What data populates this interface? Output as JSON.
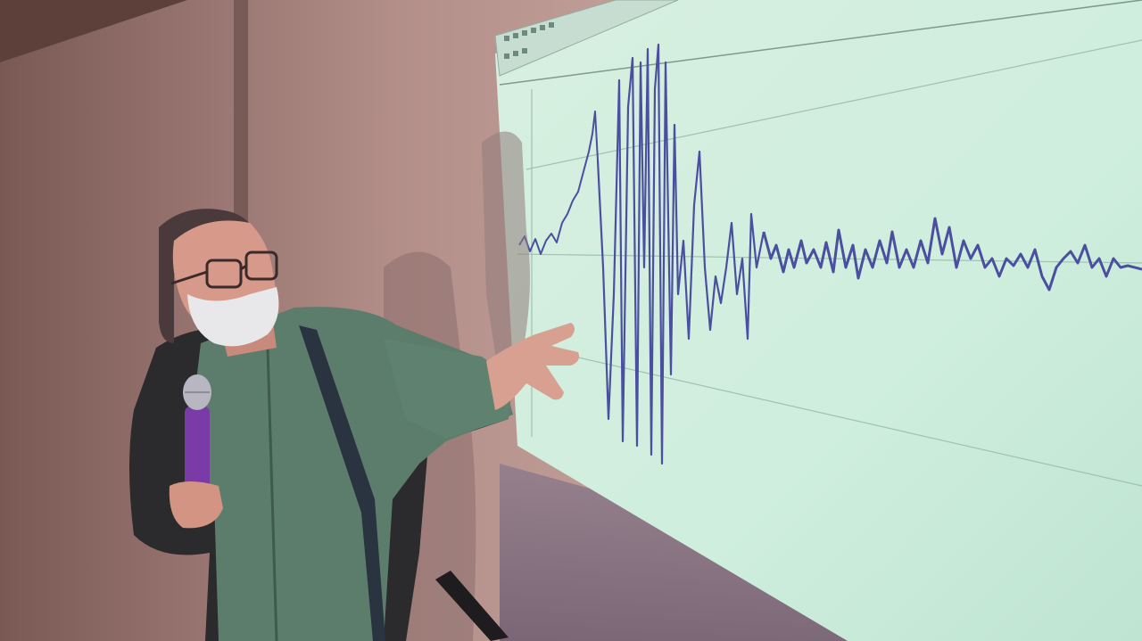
{
  "photo": {
    "subject": "presenter-with-microphone",
    "colors": {
      "wall_light": "#c9a6a1",
      "wall_dark": "#7d5c58",
      "screen": "#d9f2e2",
      "screen_edge": "#a9c9b8",
      "waveform": "#4a4fa0",
      "shirt": "#5c7d6c",
      "jacket": "#2b2a2c",
      "mic": "#7a3aa8",
      "skin": "#d79a8a",
      "beard": "#e8e8ea"
    },
    "icons": [
      "microphone-icon",
      "glasses-icon"
    ]
  }
}
